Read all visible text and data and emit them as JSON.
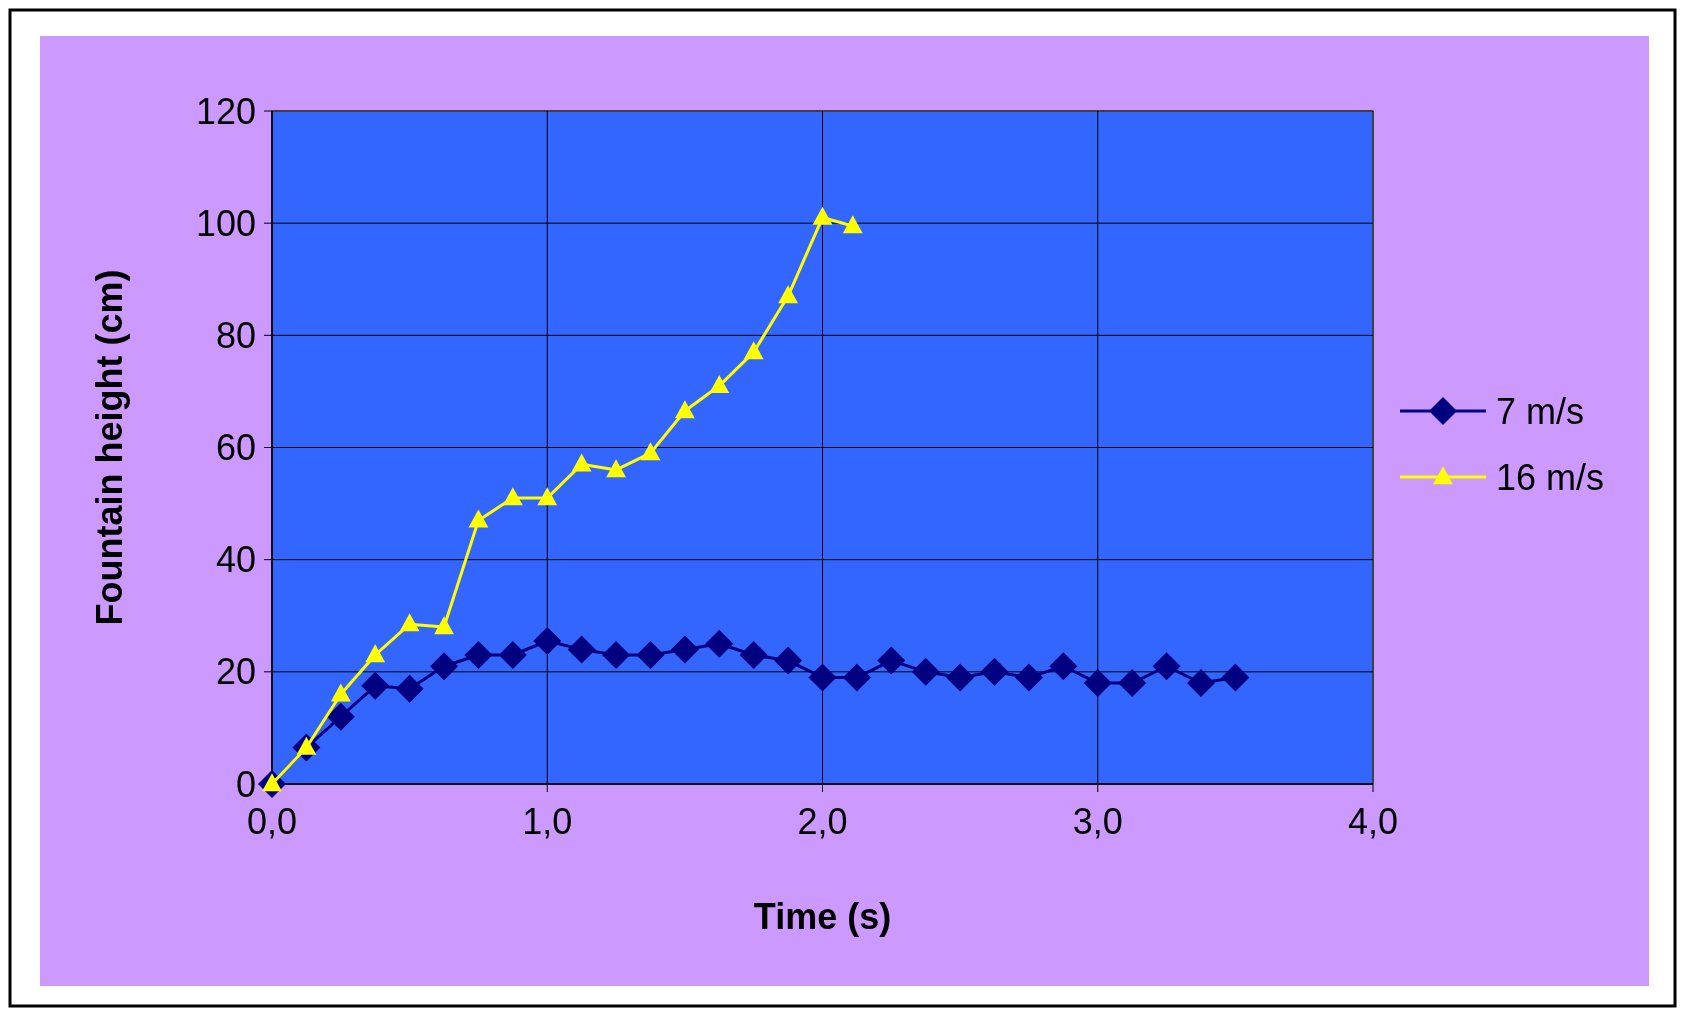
{
  "chart_data": {
    "type": "line",
    "xlabel": "Time (s)",
    "ylabel": "Fountain height (cm)",
    "xlim": [
      0,
      4
    ],
    "xticks": [
      {
        "value": 0,
        "label": "0,0"
      },
      {
        "value": 1,
        "label": "1,0"
      },
      {
        "value": 2,
        "label": "2,0"
      },
      {
        "value": 3,
        "label": "3,0"
      },
      {
        "value": 4,
        "label": "4,0"
      }
    ],
    "ylim": [
      0,
      120
    ],
    "yticks": [
      0,
      20,
      40,
      60,
      80,
      100,
      120
    ],
    "grid": true,
    "legend": "right",
    "series": [
      {
        "name": "7 m/s",
        "color": "#000080",
        "marker": "diamond",
        "x": [
          0,
          0.125,
          0.25,
          0.375,
          0.5,
          0.625,
          0.75,
          0.875,
          1,
          1.125,
          1.25,
          1.375,
          1.5,
          1.625,
          1.75,
          1.875,
          2,
          2.125,
          2.25,
          2.375,
          2.5,
          2.625,
          2.75,
          2.875,
          3,
          3.125,
          3.25,
          3.375,
          3.5
        ],
        "values": [
          0,
          6.5,
          12,
          17.5,
          17,
          21,
          23,
          23,
          25.5,
          24,
          23,
          23,
          24,
          25,
          23,
          22,
          19,
          19,
          22,
          20,
          19,
          20,
          19,
          21,
          18,
          18,
          21,
          18,
          19
        ]
      },
      {
        "name": "16 m/s",
        "color": "#ffff00",
        "marker": "triangle",
        "x": [
          0,
          0.125,
          0.25,
          0.375,
          0.5,
          0.625,
          0.75,
          0.875,
          1,
          1.125,
          1.25,
          1.375,
          1.5,
          1.625,
          1.75,
          1.875,
          2,
          2.11
        ],
        "values": [
          0,
          6.5,
          16,
          23,
          28.5,
          28,
          47,
          51,
          51,
          57,
          56,
          59,
          66.5,
          71,
          77,
          87,
          101,
          99.5
        ]
      }
    ]
  }
}
